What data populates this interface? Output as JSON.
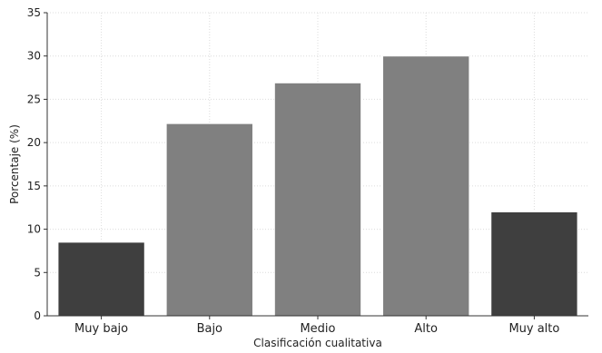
{
  "chart_data": {
    "type": "bar",
    "categories": [
      "Muy bajo",
      "Bajo",
      "Medio",
      "Alto",
      "Muy alto"
    ],
    "values": [
      8.5,
      22.2,
      26.9,
      30.0,
      12.0
    ],
    "xlabel": "Clasificación cualitativa",
    "ylabel": "Porcentaje (%)",
    "ylim": [
      0,
      35
    ],
    "yticks": [
      0,
      5,
      10,
      15,
      20,
      25,
      30,
      35
    ],
    "grid": true,
    "bar_colors": [
      "#3f3f3f",
      "#808080",
      "#808080",
      "#808080",
      "#3f3f3f"
    ],
    "edge_color": "#ffffff",
    "grid_color": "#dcdcdc",
    "axis_color": "#333333"
  }
}
